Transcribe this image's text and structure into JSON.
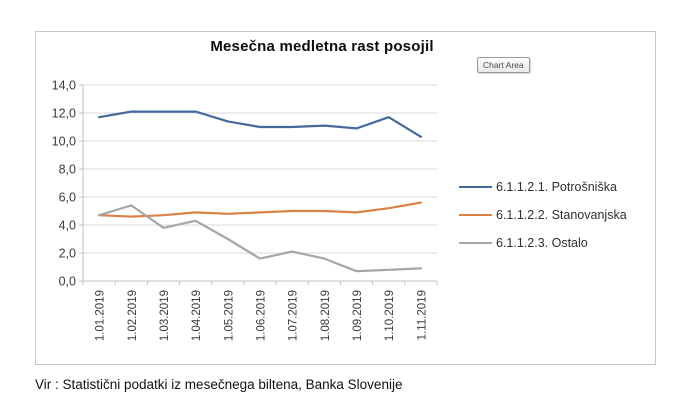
{
  "chart": {
    "title": "Mesečna medletna rast posojil",
    "tooltip": "Chart Area"
  },
  "caption": "Vir : Statistični podatki iz mesečnega biltena, Banka Slovenije",
  "chart_data": {
    "type": "line",
    "title": "Mesečna medletna rast posojil",
    "categories": [
      "1.01.2019",
      "1.02.2019",
      "1.03.2019",
      "1.04.2019",
      "1.05.2019",
      "1.06.2019",
      "1.07.2019",
      "1.08.2019",
      "1.09.2019",
      "1.10.2019",
      "1.11.2019"
    ],
    "series": [
      {
        "name": "6.1.1.2.1. Potrošniška",
        "color": "#44699D",
        "values": [
          11.7,
          12.1,
          12.1,
          12.1,
          11.4,
          11.0,
          11.0,
          11.1,
          10.9,
          11.7,
          10.3
        ]
      },
      {
        "name": "6.1.1.2.2. Stanovanjska",
        "color": "#DB8145",
        "values": [
          4.7,
          4.6,
          4.7,
          4.9,
          4.8,
          4.9,
          5.0,
          5.0,
          4.9,
          5.2,
          5.6
        ]
      },
      {
        "name": "6.1.1.2.3. Ostalo",
        "color": "#A6A6A6",
        "values": [
          4.7,
          5.4,
          3.8,
          4.3,
          3.0,
          1.6,
          2.1,
          1.6,
          0.7,
          0.8,
          0.9
        ]
      }
    ],
    "xlabel": "",
    "ylabel": "",
    "ylim": [
      0,
      14
    ],
    "ytick_step": 2,
    "ytick_labels": [
      "0,0",
      "2,0",
      "4,0",
      "6,0",
      "8,0",
      "10,0",
      "12,0",
      "14,0"
    ],
    "grid": true,
    "grid_color": "#D9D9D9",
    "axis_color": "#BFBFBF",
    "tick_label_color": "#3B3B3B",
    "legend_position": "right",
    "x_tick_label_rotation": 90
  }
}
